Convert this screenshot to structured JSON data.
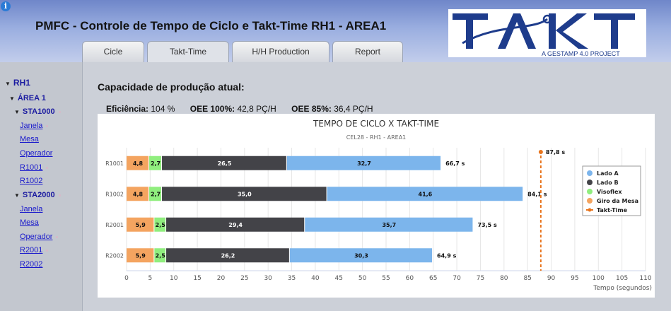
{
  "app": {
    "info_icon": "i",
    "title": "PMFC - Controle de Tempo de Ciclo e Takt-Time   RH1 - AREA1",
    "logo_text": "TAKT",
    "logo_subtitle": "A GESTAMP 4.0 PROJECT"
  },
  "tabs": [
    {
      "label": "Cicle"
    },
    {
      "label": "Takt-Time"
    },
    {
      "label": "H/H Production"
    },
    {
      "label": "Report"
    }
  ],
  "sidebar": {
    "root": "RH1",
    "area": "ÁREA 1",
    "sta1": {
      "label": "STA1000",
      "items": [
        "Janela",
        "Mesa",
        "Operador",
        "R1001",
        "R1002"
      ]
    },
    "sta2": {
      "label": "STA2000",
      "items": [
        "Janela",
        "Mesa",
        "Operador",
        "R2001",
        "R2002"
      ]
    }
  },
  "main": {
    "section_title": "Capacidade de produção atual:",
    "eff_label": "Eficiência:",
    "eff_value": "104 %",
    "oee100_label": "OEE 100%:",
    "oee100_value": "42,8 PÇ/H",
    "oee85_label": "OEE 85%:",
    "oee85_value": "36,4 PÇ/H"
  },
  "chart_data": {
    "type": "bar",
    "orientation": "horizontal",
    "stacked": true,
    "title": "TEMPO DE CICLO X TAKT-TIME",
    "subtitle": "CEL28 - RH1 - AREA1",
    "xlabel": "Tempo (segundos)",
    "xlim": [
      0,
      110
    ],
    "x_ticks": [
      0,
      5,
      10,
      15,
      20,
      25,
      30,
      35,
      40,
      45,
      50,
      55,
      60,
      65,
      70,
      75,
      80,
      85,
      90,
      95,
      100,
      105,
      110
    ],
    "categories": [
      "R1001",
      "R1002",
      "R2001",
      "R2002"
    ],
    "series": [
      {
        "name": "Giro da Mesa",
        "color": "#f4a460",
        "values": [
          4.8,
          4.8,
          5.9,
          5.9
        ],
        "labels": [
          "4,8",
          "4,8",
          "5,9",
          "5,9"
        ]
      },
      {
        "name": "Visoflex",
        "color": "#90ee7e",
        "values": [
          2.7,
          2.7,
          2.5,
          2.5
        ],
        "labels": [
          "2,7",
          "2,7",
          "2,5",
          "2,5"
        ]
      },
      {
        "name": "Lado B",
        "color": "#434348",
        "values": [
          26.5,
          35.0,
          29.4,
          26.2
        ],
        "labels": [
          "26,5",
          "35,0",
          "29,4",
          "26,2"
        ]
      },
      {
        "name": "Lado A",
        "color": "#7cb5ec",
        "values": [
          32.7,
          41.6,
          35.7,
          30.3
        ],
        "labels": [
          "32,7",
          "41,6",
          "35,7",
          "30,3"
        ]
      }
    ],
    "totals": [
      "66,7 s",
      "84,1 s",
      "73,5 s",
      "64,9 s"
    ],
    "takt_time": {
      "name": "Takt-Time",
      "value": 87.8,
      "label": "87,8 s",
      "color": "#e8741c"
    },
    "legend": {
      "position": "right",
      "items": [
        {
          "name": "Lado A",
          "color": "#7cb5ec"
        },
        {
          "name": "Lado B",
          "color": "#434348"
        },
        {
          "name": "Visoflex",
          "color": "#90ee7e"
        },
        {
          "name": "Giro da Mesa",
          "color": "#f4a460"
        },
        {
          "name": "Takt-Time",
          "color": "#e8741c"
        }
      ]
    },
    "grid": true
  }
}
